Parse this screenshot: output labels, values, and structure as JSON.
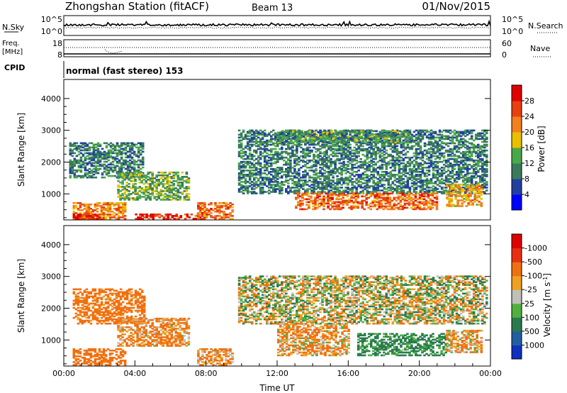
{
  "header": {
    "station": "Zhongshan Station (fitACF)",
    "beam": "Beam 13",
    "date": "01/Nov/2015"
  },
  "summary_panels": {
    "nsky": {
      "label": "N.Sky",
      "tick_top": "10^5",
      "tick_bottom": "10^0"
    },
    "nsearch": {
      "label": "N.Search",
      "tick_top": "10^5",
      "tick_bottom": "10^0"
    },
    "freq": {
      "label_line1": "Freq.",
      "label_line2": "[MHz]",
      "tick_top": "18",
      "tick_bottom": "8"
    },
    "nave": {
      "label": "Nave",
      "tick_top": "60",
      "tick_bottom": "0"
    },
    "cpid": {
      "label": "CPID",
      "value": "normal (fast stereo) 153"
    }
  },
  "chart_data": [
    {
      "type": "heatmap",
      "title": "",
      "xlabel": "",
      "ylabel": "Slant Range [km]",
      "xlim": [
        "00:00",
        "24:00"
      ],
      "ylim": [
        180,
        4600
      ],
      "y_ticks": [
        "1000",
        "2000",
        "3000",
        "4000"
      ],
      "colorbar": {
        "label": "Power [dB]",
        "ticks": [
          "4",
          "8",
          "12",
          "16",
          "20",
          "24",
          "28"
        ],
        "colors": [
          "#0000ff",
          "#2040a0",
          "#3a7a5a",
          "#4aa84a",
          "#e8c000",
          "#f08020",
          "#e84010",
          "#e00000"
        ]
      },
      "regions": [
        {
          "t0": 0.3,
          "t1": 4.5,
          "r0": 1500,
          "r1": 2600,
          "level": 8
        },
        {
          "t0": 0.5,
          "t1": 3.5,
          "r0": 200,
          "r1": 700,
          "level": 20
        },
        {
          "t0": 0.5,
          "t1": 2.0,
          "r0": 200,
          "r1": 350,
          "level": 28
        },
        {
          "t0": 3.0,
          "t1": 7.0,
          "r0": 800,
          "r1": 1700,
          "level": 12
        },
        {
          "t0": 4.0,
          "t1": 8.0,
          "r0": 200,
          "r1": 350,
          "level": 26
        },
        {
          "t0": 7.5,
          "t1": 9.5,
          "r0": 200,
          "r1": 700,
          "level": 22
        },
        {
          "t0": 9.8,
          "t1": 23.8,
          "r0": 1000,
          "r1": 3000,
          "level": 8
        },
        {
          "t0": 12.0,
          "t1": 19.5,
          "r0": 2600,
          "r1": 3000,
          "level": 10
        },
        {
          "t0": 13.0,
          "t1": 21.0,
          "r0": 500,
          "r1": 1000,
          "level": 22
        },
        {
          "t0": 21.5,
          "t1": 23.5,
          "r0": 600,
          "r1": 1300,
          "level": 18
        }
      ]
    },
    {
      "type": "heatmap",
      "title": "",
      "xlabel": "Time UT",
      "ylabel": "Slant Range [km]",
      "xlim": [
        "00:00",
        "24:00"
      ],
      "x_ticks": [
        "00:00",
        "04:00",
        "08:00",
        "12:00",
        "16:00",
        "20:00",
        "00:00"
      ],
      "ylim": [
        180,
        4600
      ],
      "y_ticks": [
        "1000",
        "2000",
        "3000",
        "4000"
      ],
      "colorbar": {
        "label": "Velocity [m s^-1]",
        "ticks": [
          "1000",
          "500",
          "100",
          "25",
          "-25",
          "-100",
          "-500",
          "-1000"
        ],
        "colors": [
          "#1030c0",
          "#2060a0",
          "#2a7a50",
          "#50b040",
          "#c0c0b8",
          "#f0a020",
          "#f07010",
          "#e83010",
          "#e00000"
        ]
      },
      "regions": [
        {
          "t0": 0.5,
          "t1": 4.5,
          "r0": 1500,
          "r1": 2600,
          "level": -250
        },
        {
          "t0": 0.5,
          "t1": 3.5,
          "r0": 200,
          "r1": 700,
          "level": -250
        },
        {
          "t0": 3.0,
          "t1": 7.0,
          "r0": 800,
          "r1": 1700,
          "level": -150
        },
        {
          "t0": 7.5,
          "t1": 9.5,
          "r0": 200,
          "r1": 700,
          "level": -150
        },
        {
          "t0": 9.8,
          "t1": 23.8,
          "r0": 1500,
          "r1": 3000,
          "level": 0
        },
        {
          "t0": 12.0,
          "t1": 16.0,
          "r0": 500,
          "r1": 1500,
          "level": -120
        },
        {
          "t0": 16.5,
          "t1": 21.5,
          "r0": 500,
          "r1": 1200,
          "level": 200
        },
        {
          "t0": 21.5,
          "t1": 23.5,
          "r0": 600,
          "r1": 1300,
          "level": -100
        }
      ]
    }
  ]
}
